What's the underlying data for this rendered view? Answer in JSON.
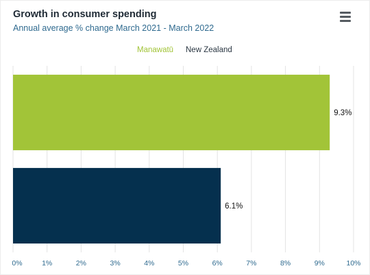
{
  "title": "Growth in consumer spending",
  "subtitle": "Annual average % change March 2021 - March 2022",
  "menu_icon": "hamburger-menu-icon",
  "chart_data": {
    "type": "bar",
    "orientation": "horizontal",
    "series": [
      {
        "name": "Manawatū",
        "value": 9.3,
        "label": "9.3%",
        "color": "#a2c438"
      },
      {
        "name": "New Zealand",
        "value": 6.1,
        "label": "6.1%",
        "color": "#05304e"
      }
    ],
    "xlim": [
      0,
      10
    ],
    "x_ticks": [
      "0%",
      "1%",
      "2%",
      "3%",
      "4%",
      "5%",
      "6%",
      "7%",
      "8%",
      "9%",
      "10%"
    ],
    "grid": true,
    "legend_position": "top-center"
  }
}
